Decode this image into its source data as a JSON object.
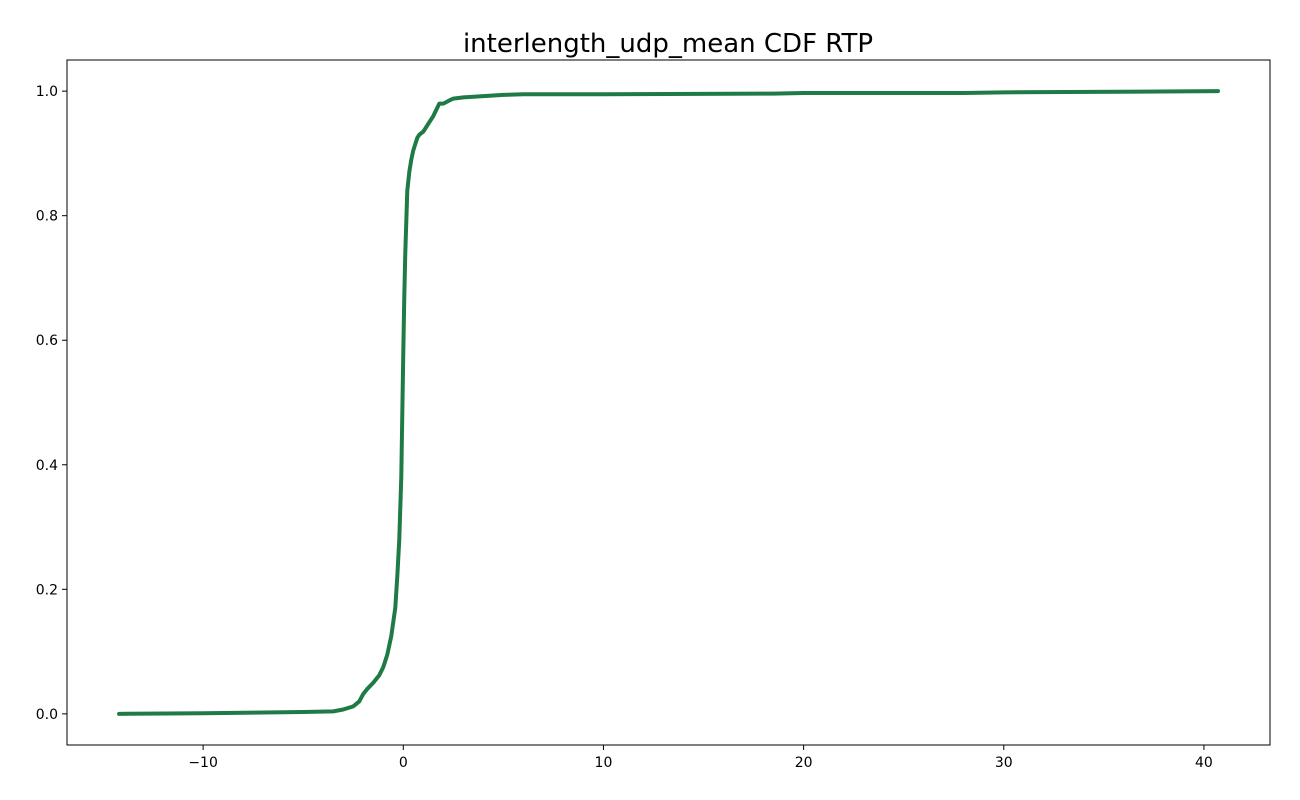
{
  "chart_data": {
    "type": "line",
    "title": "interlength_udp_mean CDF RTP",
    "xlabel": "",
    "ylabel": "",
    "xlim": [
      -16.8,
      43.3
    ],
    "ylim": [
      -0.05,
      1.05
    ],
    "xticks": [
      -10,
      0,
      10,
      20,
      30,
      40
    ],
    "xtick_labels": [
      "−10",
      "0",
      "10",
      "20",
      "30",
      "40"
    ],
    "yticks": [
      0.0,
      0.2,
      0.4,
      0.6,
      0.8,
      1.0
    ],
    "ytick_labels": [
      "0.0",
      "0.2",
      "0.4",
      "0.6",
      "0.8",
      "1.0"
    ],
    "grid": false,
    "legend": "none",
    "series": [
      {
        "color": "#1e7b45",
        "x": [
          -14.2,
          -10,
          -5,
          -3.5,
          -3,
          -2.5,
          -2.2,
          -2.0,
          -1.8,
          -1.5,
          -1.2,
          -1.0,
          -0.8,
          -0.6,
          -0.4,
          -0.3,
          -0.2,
          -0.1,
          -0.05,
          0,
          0.05,
          0.1,
          0.2,
          0.3,
          0.4,
          0.5,
          0.6,
          0.7,
          0.8,
          1.0,
          1.2,
          1.5,
          1.8,
          2.0,
          2.3,
          2.5,
          3.0,
          3.5,
          4.0,
          5.0,
          6.0,
          10,
          18.5,
          20,
          28,
          30,
          40.7
        ],
        "y": [
          0.0,
          0.001,
          0.003,
          0.004,
          0.007,
          0.012,
          0.02,
          0.032,
          0.04,
          0.05,
          0.062,
          0.075,
          0.095,
          0.125,
          0.17,
          0.22,
          0.28,
          0.38,
          0.48,
          0.58,
          0.67,
          0.74,
          0.84,
          0.87,
          0.89,
          0.905,
          0.915,
          0.925,
          0.93,
          0.935,
          0.945,
          0.96,
          0.98,
          0.98,
          0.985,
          0.988,
          0.99,
          0.991,
          0.992,
          0.994,
          0.995,
          0.995,
          0.996,
          0.997,
          0.997,
          0.998,
          1.0
        ]
      }
    ],
    "colors": {
      "line": "#1e7b45",
      "axes": "#000000",
      "background": "#ffffff"
    }
  }
}
